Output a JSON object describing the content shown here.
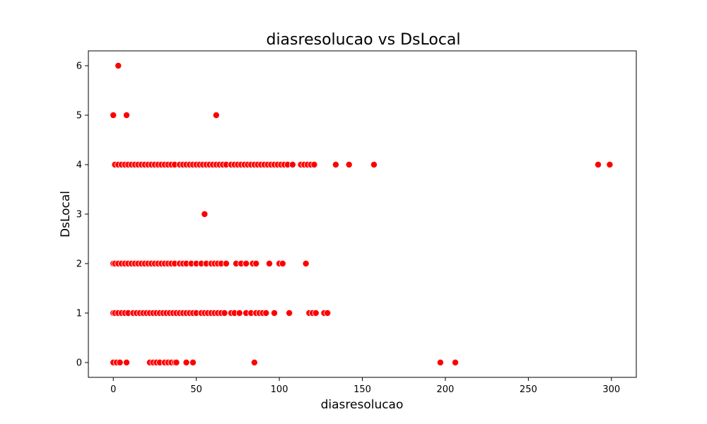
{
  "chart_data": {
    "type": "scatter",
    "title": "diasresolucao vs DsLocal",
    "xlabel": "diasresolucao",
    "ylabel": "DsLocal",
    "xlim": [
      -15,
      315
    ],
    "ylim": [
      -0.3,
      6.3
    ],
    "xticks": [
      0,
      50,
      100,
      150,
      200,
      250,
      300
    ],
    "yticks": [
      0,
      1,
      2,
      3,
      4,
      5,
      6
    ],
    "grid": false,
    "marker_color": "#ff0000",
    "marker_edge": "#ffffff",
    "points": [
      [
        0,
        0
      ],
      [
        2,
        0
      ],
      [
        4,
        0
      ],
      [
        8,
        0
      ],
      [
        22,
        0
      ],
      [
        24,
        0
      ],
      [
        26,
        0
      ],
      [
        28,
        0
      ],
      [
        31,
        0
      ],
      [
        33,
        0
      ],
      [
        35,
        0
      ],
      [
        37,
        0
      ],
      [
        38,
        0
      ],
      [
        44,
        0
      ],
      [
        48,
        0
      ],
      [
        85,
        0
      ],
      [
        197,
        0
      ],
      [
        206,
        0
      ],
      [
        0,
        1
      ],
      [
        1,
        1
      ],
      [
        3,
        1
      ],
      [
        5,
        1
      ],
      [
        7,
        1
      ],
      [
        9,
        1
      ],
      [
        12,
        1
      ],
      [
        14,
        1
      ],
      [
        16,
        1
      ],
      [
        18,
        1
      ],
      [
        20,
        1
      ],
      [
        22,
        1
      ],
      [
        24,
        1
      ],
      [
        26,
        1
      ],
      [
        28,
        1
      ],
      [
        30,
        1
      ],
      [
        32,
        1
      ],
      [
        34,
        1
      ],
      [
        36,
        1
      ],
      [
        38,
        1
      ],
      [
        40,
        1
      ],
      [
        42,
        1
      ],
      [
        44,
        1
      ],
      [
        46,
        1
      ],
      [
        48,
        1
      ],
      [
        50,
        1
      ],
      [
        53,
        1
      ],
      [
        55,
        1
      ],
      [
        57,
        1
      ],
      [
        59,
        1
      ],
      [
        61,
        1
      ],
      [
        63,
        1
      ],
      [
        65,
        1
      ],
      [
        67,
        1
      ],
      [
        71,
        1
      ],
      [
        73,
        1
      ],
      [
        76,
        1
      ],
      [
        80,
        1
      ],
      [
        83,
        1
      ],
      [
        86,
        1
      ],
      [
        88,
        1
      ],
      [
        90,
        1
      ],
      [
        92,
        1
      ],
      [
        97,
        1
      ],
      [
        106,
        1
      ],
      [
        118,
        1
      ],
      [
        120,
        1
      ],
      [
        122,
        1
      ],
      [
        127,
        1
      ],
      [
        129,
        1
      ],
      [
        0,
        2
      ],
      [
        1,
        2
      ],
      [
        3,
        2
      ],
      [
        5,
        2
      ],
      [
        7,
        2
      ],
      [
        9,
        2
      ],
      [
        11,
        2
      ],
      [
        13,
        2
      ],
      [
        15,
        2
      ],
      [
        17,
        2
      ],
      [
        19,
        2
      ],
      [
        21,
        2
      ],
      [
        23,
        2
      ],
      [
        25,
        2
      ],
      [
        27,
        2
      ],
      [
        29,
        2
      ],
      [
        31,
        2
      ],
      [
        33,
        2
      ],
      [
        35,
        2
      ],
      [
        37,
        2
      ],
      [
        40,
        2
      ],
      [
        42,
        2
      ],
      [
        44,
        2
      ],
      [
        47,
        2
      ],
      [
        50,
        2
      ],
      [
        53,
        2
      ],
      [
        56,
        2
      ],
      [
        59,
        2
      ],
      [
        61,
        2
      ],
      [
        63,
        2
      ],
      [
        65,
        2
      ],
      [
        68,
        2
      ],
      [
        74,
        2
      ],
      [
        77,
        2
      ],
      [
        80,
        2
      ],
      [
        84,
        2
      ],
      [
        86,
        2
      ],
      [
        94,
        2
      ],
      [
        100,
        2
      ],
      [
        102,
        2
      ],
      [
        116,
        2
      ],
      [
        55,
        3
      ],
      [
        1,
        4
      ],
      [
        3,
        4
      ],
      [
        5,
        4
      ],
      [
        7,
        4
      ],
      [
        9,
        4
      ],
      [
        11,
        4
      ],
      [
        13,
        4
      ],
      [
        15,
        4
      ],
      [
        17,
        4
      ],
      [
        19,
        4
      ],
      [
        21,
        4
      ],
      [
        23,
        4
      ],
      [
        25,
        4
      ],
      [
        27,
        4
      ],
      [
        29,
        4
      ],
      [
        31,
        4
      ],
      [
        33,
        4
      ],
      [
        35,
        4
      ],
      [
        37,
        4
      ],
      [
        40,
        4
      ],
      [
        42,
        4
      ],
      [
        44,
        4
      ],
      [
        46,
        4
      ],
      [
        48,
        4
      ],
      [
        50,
        4
      ],
      [
        52,
        4
      ],
      [
        54,
        4
      ],
      [
        56,
        4
      ],
      [
        58,
        4
      ],
      [
        60,
        4
      ],
      [
        62,
        4
      ],
      [
        64,
        4
      ],
      [
        66,
        4
      ],
      [
        68,
        4
      ],
      [
        71,
        4
      ],
      [
        73,
        4
      ],
      [
        75,
        4
      ],
      [
        77,
        4
      ],
      [
        79,
        4
      ],
      [
        81,
        4
      ],
      [
        83,
        4
      ],
      [
        85,
        4
      ],
      [
        87,
        4
      ],
      [
        89,
        4
      ],
      [
        91,
        4
      ],
      [
        93,
        4
      ],
      [
        95,
        4
      ],
      [
        97,
        4
      ],
      [
        99,
        4
      ],
      [
        101,
        4
      ],
      [
        103,
        4
      ],
      [
        105,
        4
      ],
      [
        108,
        4
      ],
      [
        113,
        4
      ],
      [
        115,
        4
      ],
      [
        117,
        4
      ],
      [
        119,
        4
      ],
      [
        121,
        4
      ],
      [
        134,
        4
      ],
      [
        142,
        4
      ],
      [
        157,
        4
      ],
      [
        292,
        4
      ],
      [
        299,
        4
      ],
      [
        0,
        5
      ],
      [
        8,
        5
      ],
      [
        62,
        5
      ],
      [
        3,
        6
      ]
    ]
  }
}
